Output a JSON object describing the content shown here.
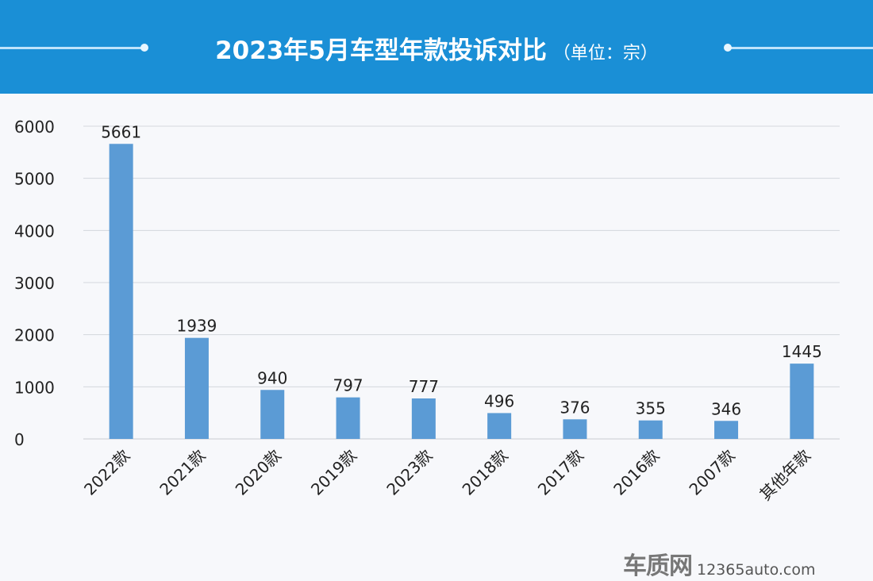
{
  "chart_data": {
    "type": "bar",
    "title": "2023年5月车型年款投诉对比",
    "unit": "（单位：宗）",
    "categories": [
      "2022款",
      "2021款",
      "2020款",
      "2019款",
      "2023款",
      "2018款",
      "2017款",
      "2016款",
      "2007款",
      "其他年款"
    ],
    "values": [
      5661,
      1939,
      940,
      797,
      777,
      496,
      376,
      355,
      346,
      1445
    ],
    "ylim": [
      0,
      6000
    ],
    "yticks": [
      0,
      1000,
      2000,
      3000,
      4000,
      5000,
      6000
    ],
    "grid": true,
    "bar_color": "#5b9bd5",
    "header_color": "#1a8fd6"
  },
  "watermark": {
    "logo": "车质网",
    "url": "12365auto.com"
  }
}
